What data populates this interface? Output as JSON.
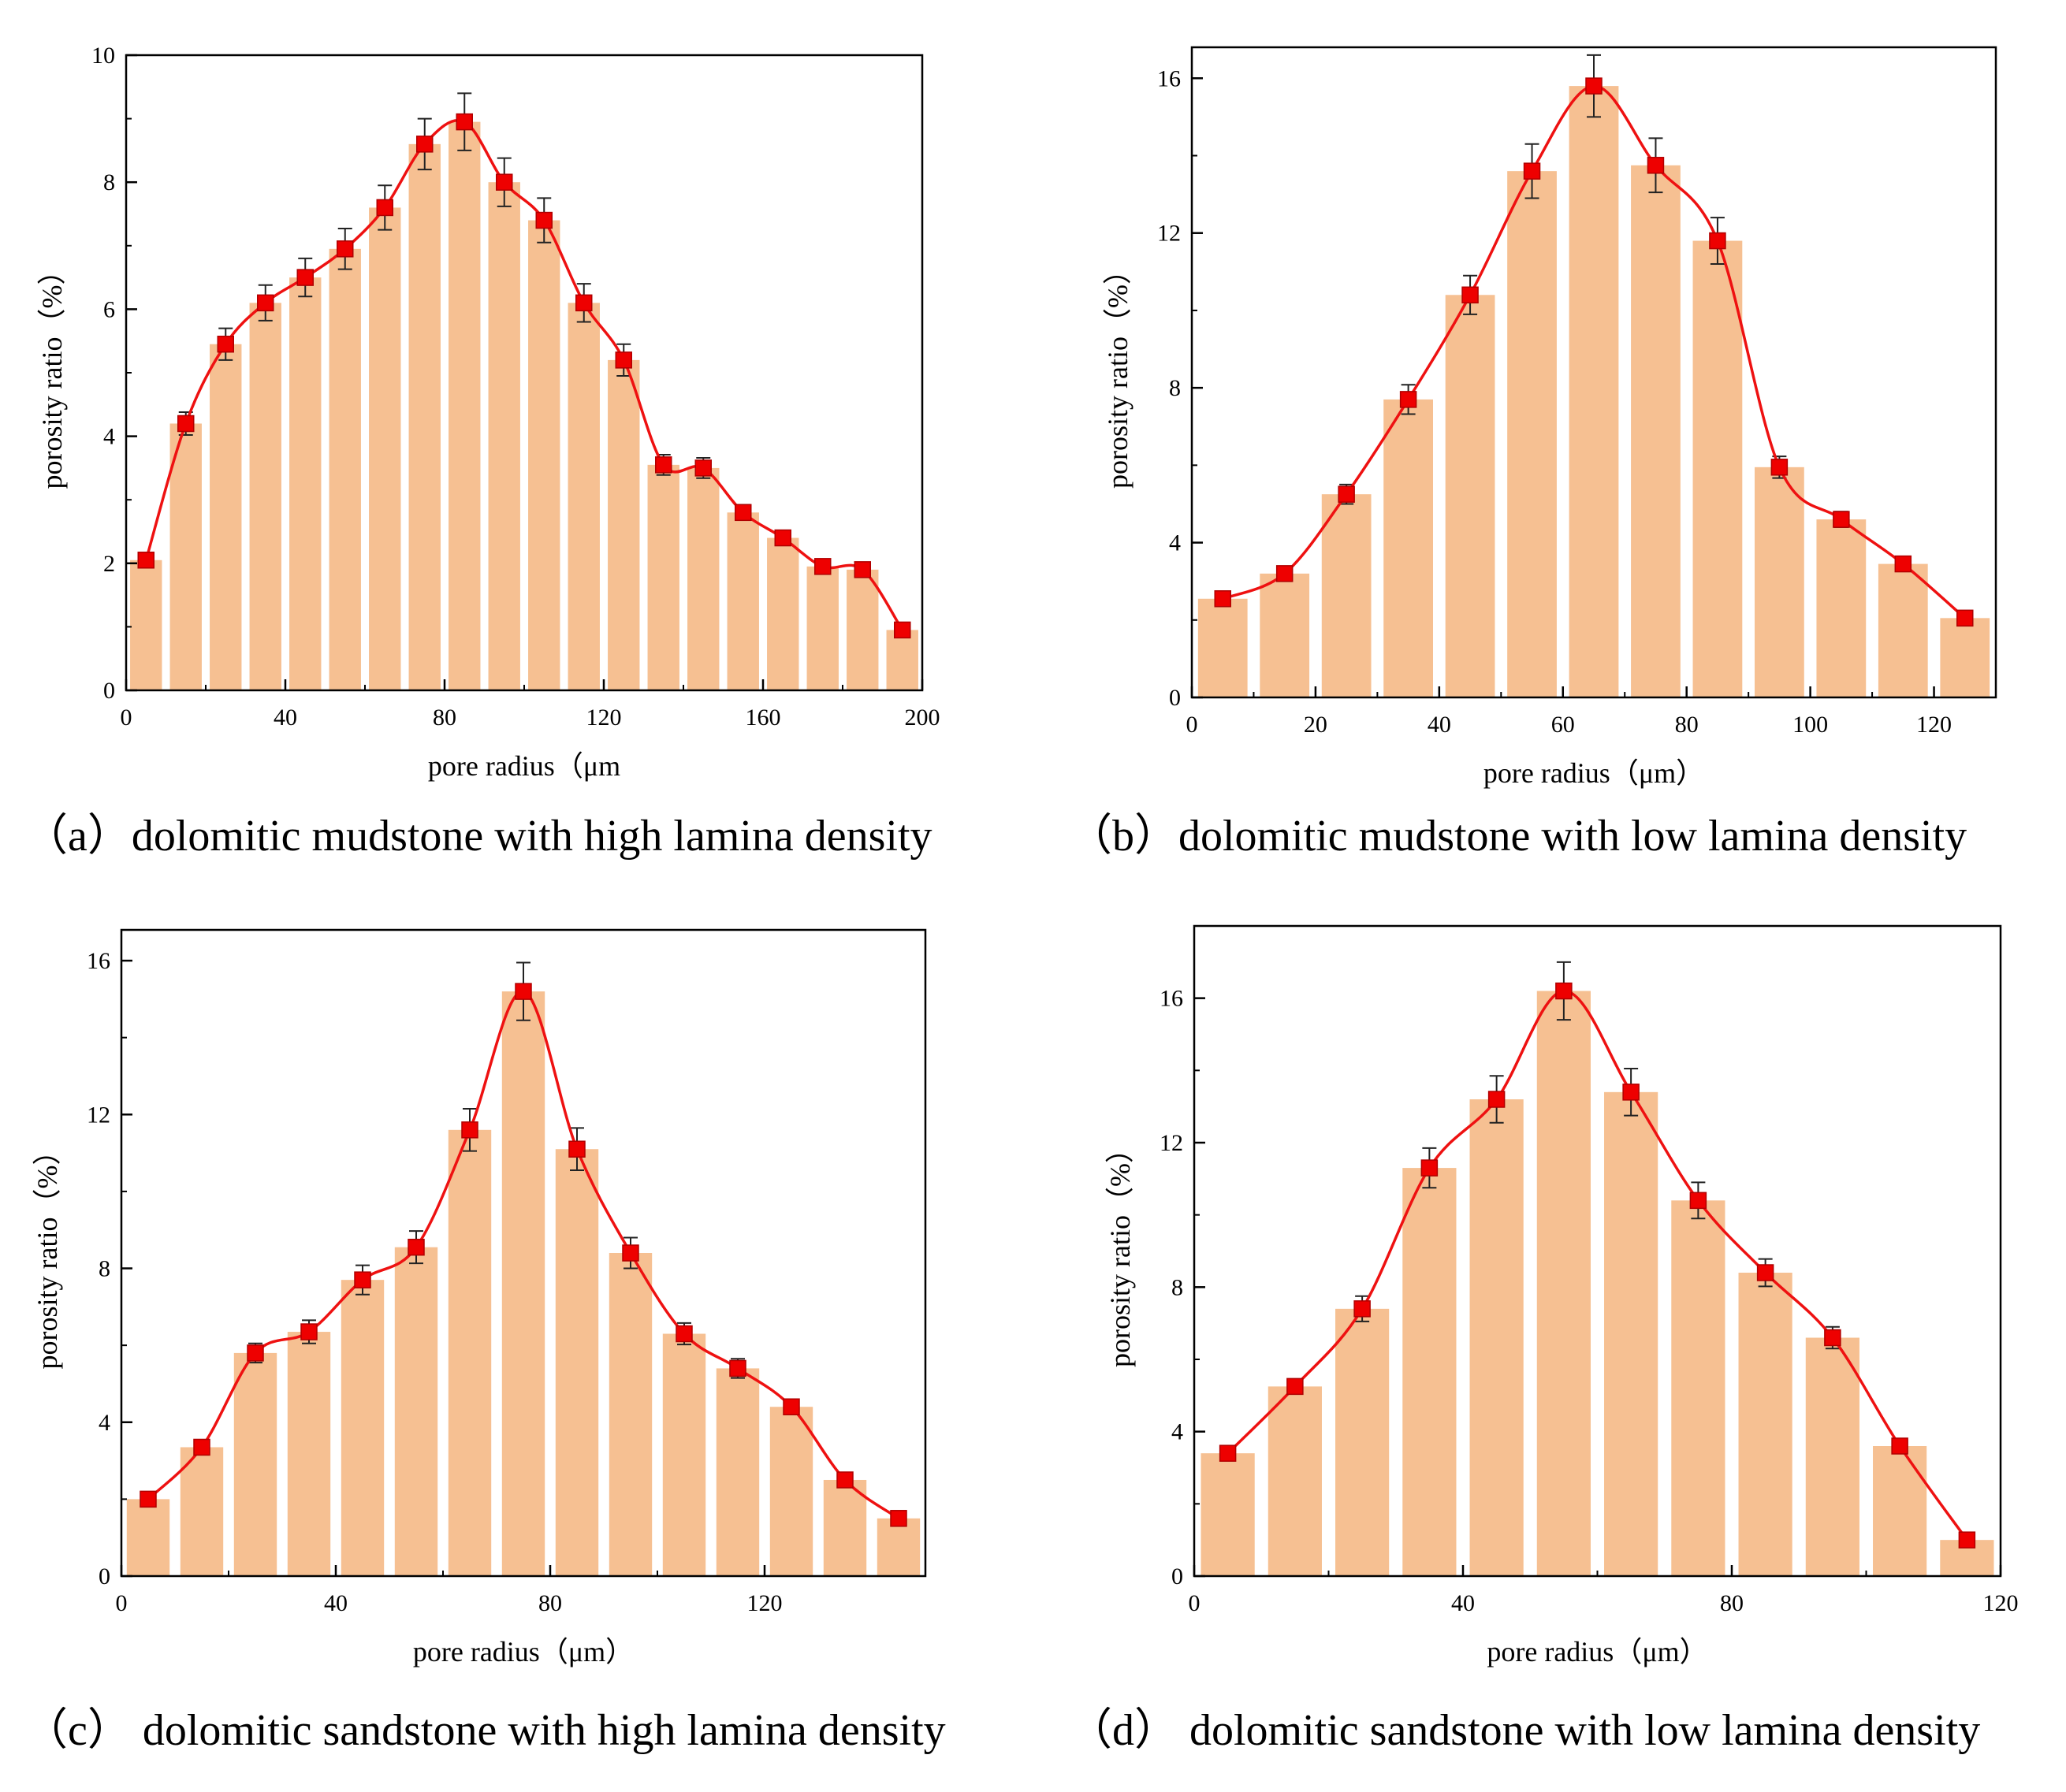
{
  "chart_data": [
    {
      "type": "bar",
      "caption": "（a）dolomitic mudstone with high lamina density",
      "xlabel": "pore radius（μm",
      "ylabel": "porosity ratio（%）",
      "xlim": [
        0,
        200
      ],
      "ylim": [
        0,
        10
      ],
      "xticks": [
        0,
        40,
        80,
        120,
        160,
        200
      ],
      "yticks": [
        0,
        2,
        4,
        6,
        8,
        10
      ],
      "x": [
        5,
        15,
        25,
        35,
        45,
        55,
        65,
        75,
        85,
        95,
        105,
        115,
        125,
        135,
        145,
        155,
        165,
        175,
        185,
        195
      ],
      "values": [
        2.05,
        4.2,
        5.45,
        6.1,
        6.5,
        6.95,
        7.6,
        8.6,
        8.95,
        8.0,
        7.4,
        6.1,
        5.2,
        3.55,
        3.5,
        2.8,
        2.4,
        1.95,
        1.9,
        0.95
      ],
      "errors": [
        0.05,
        0.18,
        0.25,
        0.28,
        0.3,
        0.32,
        0.35,
        0.4,
        0.45,
        0.38,
        0.35,
        0.3,
        0.25,
        0.16,
        0.16,
        0.12,
        0.1,
        0.05,
        0.05,
        0.04
      ],
      "bar_color": "#f6c092",
      "line_color": "#ee1111",
      "marker_color": "#ee0000"
    },
    {
      "type": "bar",
      "caption": "（b）dolomitic mudstone with low lamina density",
      "xlabel": "pore radius（μm）",
      "ylabel": "porosity ratio（%）",
      "xlim": [
        0,
        130
      ],
      "ylim": [
        0,
        16.8
      ],
      "xticks": [
        0,
        20,
        40,
        60,
        80,
        100,
        120
      ],
      "yticks": [
        0,
        4,
        8,
        12,
        16
      ],
      "x": [
        5,
        15,
        25,
        35,
        45,
        55,
        65,
        75,
        85,
        95,
        105,
        115,
        125
      ],
      "values": [
        2.55,
        3.2,
        5.25,
        7.7,
        10.4,
        13.6,
        15.8,
        13.75,
        11.8,
        5.95,
        4.6,
        3.45,
        2.05
      ],
      "errors": [
        0.08,
        0.12,
        0.25,
        0.38,
        0.5,
        0.7,
        0.8,
        0.7,
        0.6,
        0.28,
        0.2,
        0.12,
        0.06
      ],
      "bar_color": "#f6c092",
      "line_color": "#ee1111",
      "marker_color": "#ee0000"
    },
    {
      "type": "bar",
      "caption": "（c） dolomitic sandstone with high lamina density",
      "xlabel": "pore radius（μm）",
      "ylabel": "porosity ratio（%）",
      "xlim": [
        0,
        150
      ],
      "ylim": [
        0,
        16.8
      ],
      "xticks": [
        0,
        40,
        80,
        120
      ],
      "yticks": [
        0,
        4,
        8,
        12,
        16
      ],
      "x": [
        5,
        15,
        25,
        35,
        45,
        55,
        65,
        75,
        85,
        95,
        105,
        115,
        125,
        135,
        145
      ],
      "values": [
        2.0,
        3.35,
        5.8,
        6.35,
        7.7,
        8.55,
        11.6,
        15.2,
        11.1,
        8.4,
        6.3,
        5.4,
        4.4,
        2.5,
        1.5
      ],
      "errors": [
        0.05,
        0.08,
        0.25,
        0.3,
        0.38,
        0.42,
        0.55,
        0.75,
        0.55,
        0.4,
        0.28,
        0.25,
        0.15,
        0.08,
        0.05
      ],
      "bar_color": "#f6c092",
      "line_color": "#ee1111",
      "marker_color": "#ee0000"
    },
    {
      "type": "bar",
      "caption": "（d） dolomitic sandstone with low lamina density",
      "xlabel": "pore radius（μm）",
      "ylabel": "porosity ratio（%）",
      "xlim": [
        0,
        120
      ],
      "ylim": [
        0,
        18
      ],
      "xticks": [
        0,
        40,
        80,
        120
      ],
      "yticks": [
        0,
        4,
        8,
        12,
        16
      ],
      "x": [
        5,
        15,
        25,
        35,
        45,
        55,
        65,
        75,
        85,
        95,
        105,
        115
      ],
      "values": [
        3.4,
        5.25,
        7.4,
        11.3,
        13.2,
        16.2,
        13.4,
        10.4,
        8.4,
        6.6,
        3.6,
        1.0
      ],
      "errors": [
        0.1,
        0.2,
        0.35,
        0.55,
        0.65,
        0.8,
        0.65,
        0.5,
        0.38,
        0.3,
        0.1,
        0.05
      ],
      "bar_color": "#f6c092",
      "line_color": "#ee1111",
      "marker_color": "#ee0000"
    }
  ]
}
